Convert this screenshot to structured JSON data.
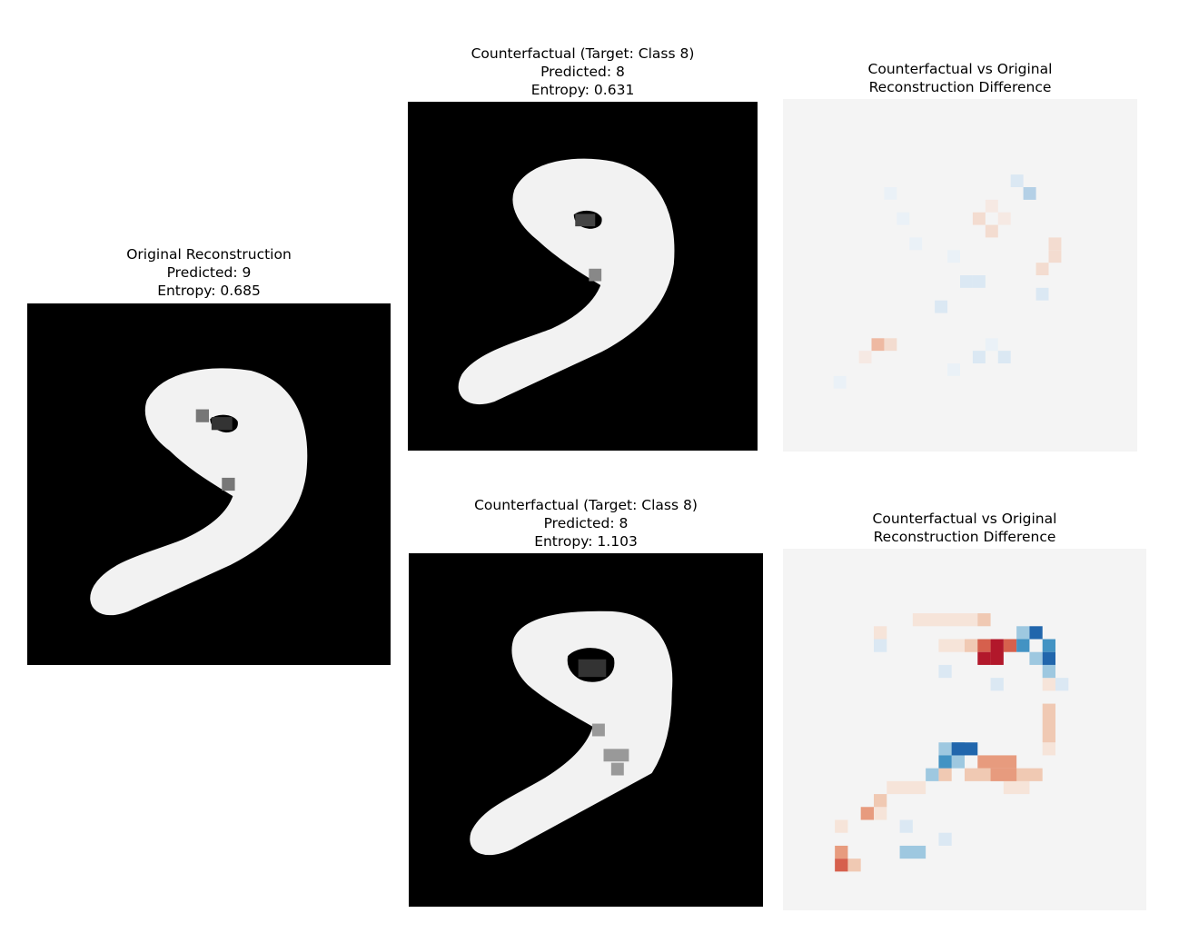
{
  "panels": {
    "original": {
      "title": "Original Reconstruction",
      "predicted": "Predicted: 9",
      "entropy": "Entropy: 0.685"
    },
    "counterfactual_1": {
      "title": "Counterfactual (Target: Class 8)",
      "predicted": "Predicted: 8",
      "entropy": "Entropy: 0.631"
    },
    "difference_1": {
      "title_line1": "Counterfactual vs Original",
      "title_line2": "Reconstruction Difference"
    },
    "counterfactual_2": {
      "title": "Counterfactual (Target: Class 8)",
      "predicted": "Predicted: 8",
      "entropy": "Entropy: 1.103"
    },
    "difference_2": {
      "title_line1": "Counterfactual vs Original",
      "title_line2": "Reconstruction Difference"
    }
  },
  "colors": {
    "digit_background": "#000000",
    "digit_foreground": "#f2f2f2",
    "diff_background": "#f4f4f4",
    "diff_positive": "#b2182b",
    "diff_negative": "#2166ac"
  }
}
